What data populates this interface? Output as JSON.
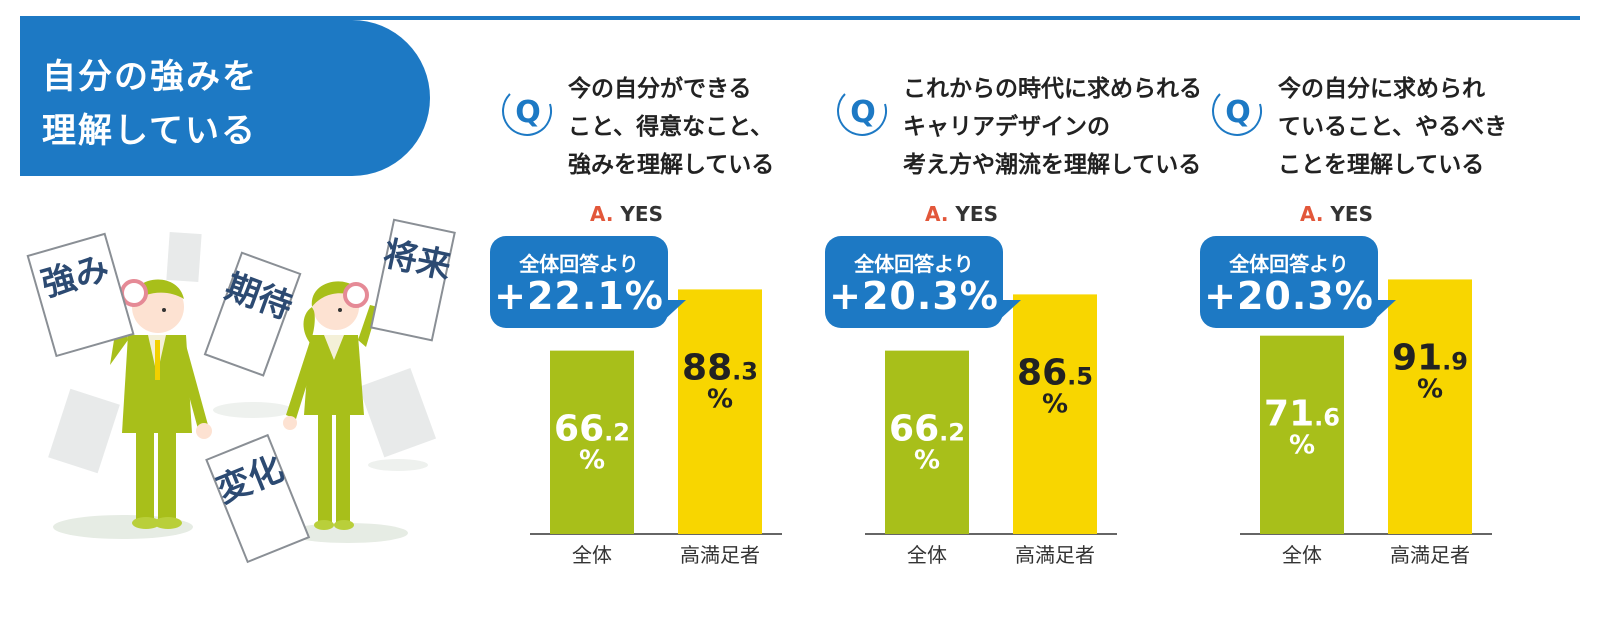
{
  "title": {
    "line1": "自分の強みを",
    "line2": "理解している"
  },
  "illustration": {
    "cards": [
      "強み",
      "期待",
      "将来",
      "変化"
    ]
  },
  "colors": {
    "accent_blue": "#1d79c4",
    "bar_all": "#a8bf1a",
    "bar_high": "#f8d600",
    "answer_red": "#e2573a"
  },
  "answer": {
    "prefix": "A.",
    "label": "YES"
  },
  "bubble_label": "全体回答より",
  "chart_data": [
    {
      "type": "bar",
      "title": "今の自分ができること、得意なこと、強みを理解している",
      "question_lines": [
        "今の自分ができる",
        "こと、得意なこと、",
        "強みを理解している"
      ],
      "categories": [
        "全体",
        "高満足者"
      ],
      "values": [
        66.2,
        88.3
      ],
      "unit": "%",
      "difference_label": "+22.1%",
      "ylim": [
        0,
        100
      ]
    },
    {
      "type": "bar",
      "title": "これからの時代に求められるキャリアデザインの考え方や潮流を理解している",
      "question_lines": [
        "これからの時代に求められる",
        "キャリアデザインの",
        "考え方や潮流を理解している"
      ],
      "categories": [
        "全体",
        "高満足者"
      ],
      "values": [
        66.2,
        86.5
      ],
      "unit": "%",
      "difference_label": "+20.3%",
      "ylim": [
        0,
        100
      ]
    },
    {
      "type": "bar",
      "title": "今の自分に求められていること、やるべきことを理解している",
      "question_lines": [
        "今の自分に求められ",
        "ていること、やるべき",
        "ことを理解している"
      ],
      "categories": [
        "全体",
        "高満足者"
      ],
      "values": [
        71.6,
        91.9
      ],
      "unit": "%",
      "difference_label": "+20.3%",
      "ylim": [
        0,
        100
      ]
    }
  ]
}
